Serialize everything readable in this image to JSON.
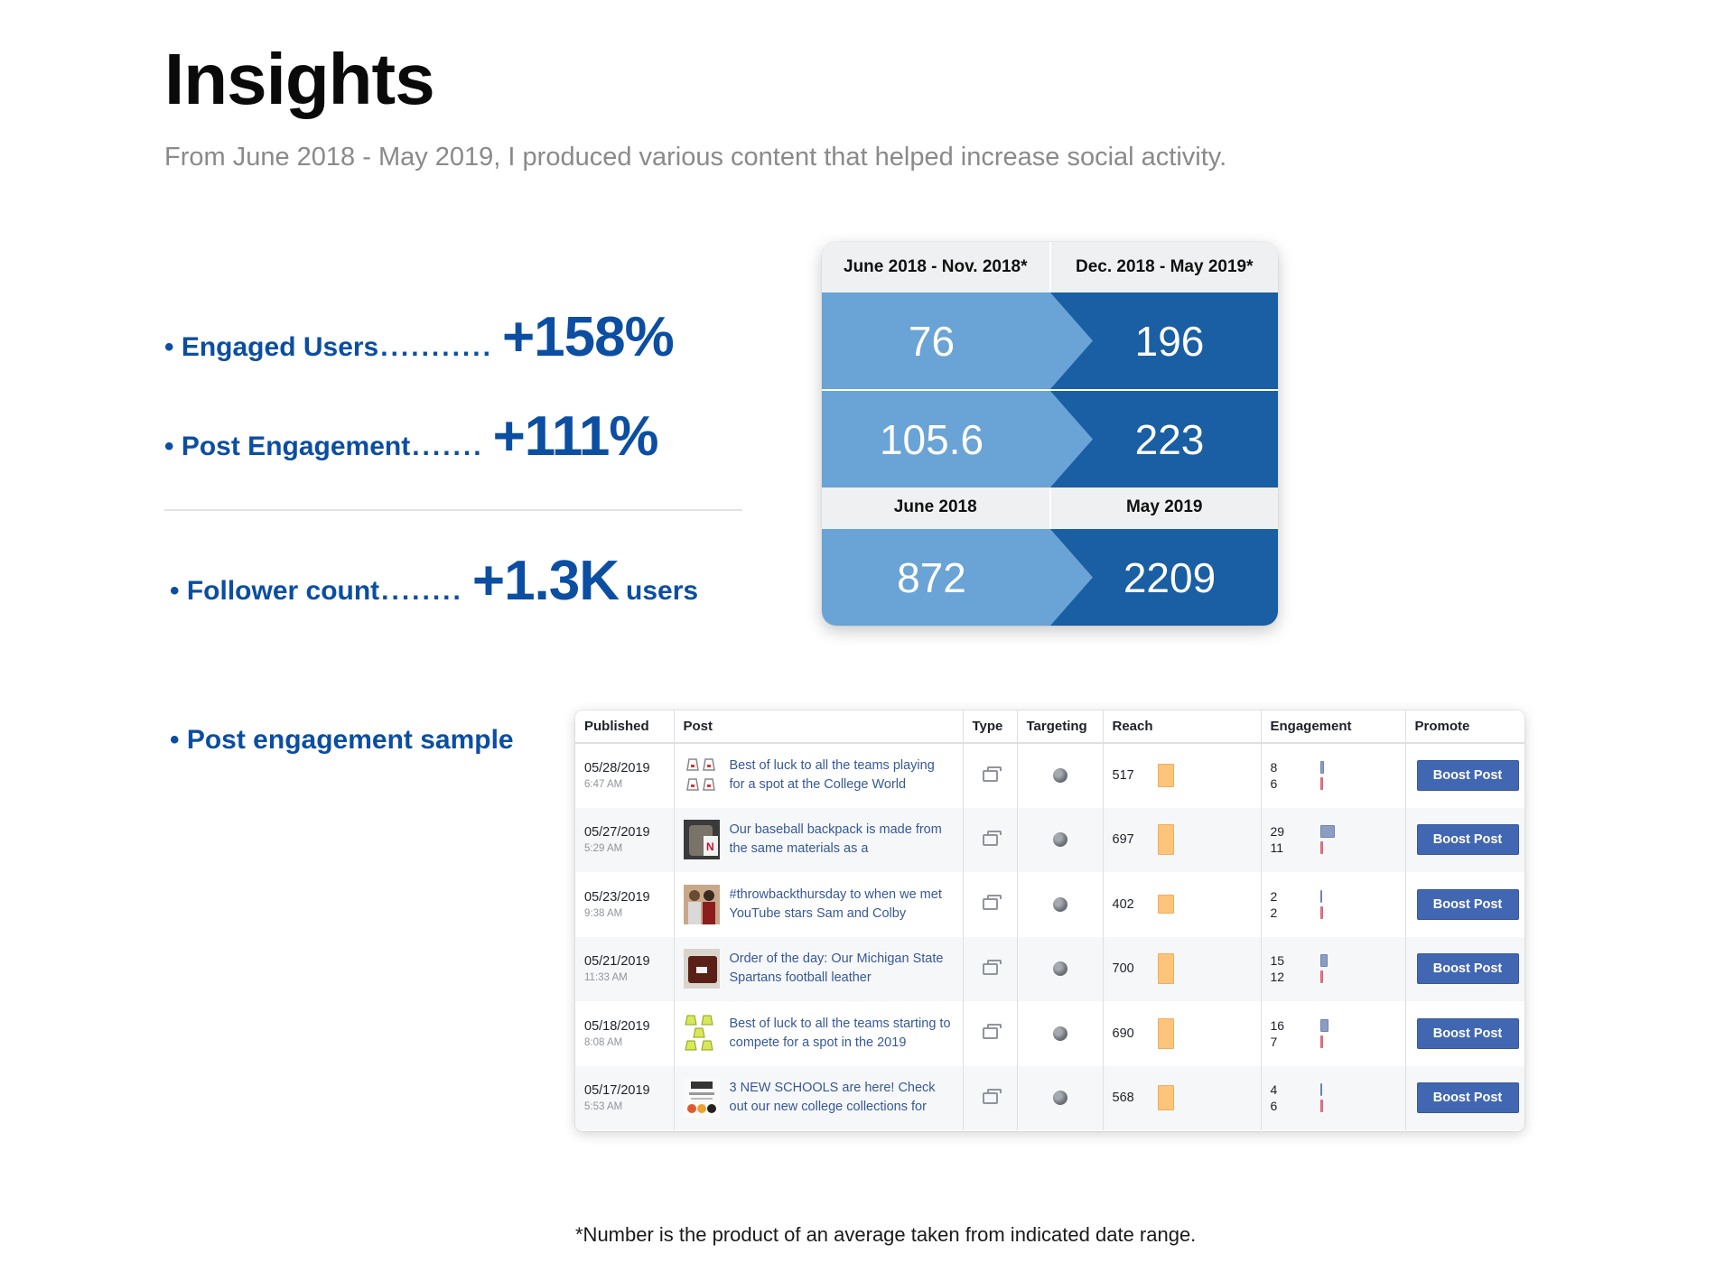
{
  "page": {
    "title": "Insights",
    "subtitle": "From June 2018 - May 2019, I produced various content that helped increase social activity."
  },
  "stats": [
    {
      "label": "• Engaged Users",
      "dots": "...........",
      "value": "+158%",
      "unit": ""
    },
    {
      "label": "• Post Engagement",
      "dots": ".......",
      "value": "+111%",
      "unit": ""
    },
    {
      "label": "• Follower count",
      "dots": "........",
      "value": "+1.3K",
      "unit": "users"
    }
  ],
  "comparison": {
    "header": [
      "June 2018 - Nov. 2018*",
      "Dec. 2018 - May 2019*"
    ],
    "subheader": [
      "June 2018",
      "May 2019"
    ],
    "rows": [
      {
        "before": "76",
        "after": "196"
      },
      {
        "before": "105.6",
        "after": "223"
      },
      {
        "before": "872",
        "after": "2209"
      }
    ],
    "colors": {
      "light": "#6aa3d5",
      "dark": "#1a5ea3",
      "header_bg": "#eef0f2"
    }
  },
  "section": {
    "post_sample_label": "• Post engagement sample"
  },
  "table": {
    "columns": [
      "Published",
      "Post",
      "Type",
      "Targeting",
      "Reach",
      "Engagement",
      "Promote"
    ],
    "boost_label": "Boost Post",
    "rows": [
      {
        "date": "05/28/2019",
        "time": "6:47 AM",
        "text": "Best of luck to all the teams playing for a spot at the College World",
        "thumb": "cap-icons",
        "reach": "517",
        "reach_level": 0.74,
        "eng1": "8",
        "eng2": "6",
        "eng1_level": 0.28,
        "eng2_level": 0.21
      },
      {
        "date": "05/27/2019",
        "time": "5:29 AM",
        "text": "Our baseball backpack is made from the same materials as a",
        "thumb": "backpack-photo",
        "reach": "697",
        "reach_level": 1.0,
        "eng1": "29",
        "eng2": "11",
        "eng1_level": 1.0,
        "eng2_level": 0.38
      },
      {
        "date": "05/23/2019",
        "time": "9:38 AM",
        "text": "#throwbackthursday to when we met YouTube stars Sam and Colby",
        "thumb": "people-photo",
        "reach": "402",
        "reach_level": 0.57,
        "eng1": "2",
        "eng2": "2",
        "eng1_level": 0.07,
        "eng2_level": 0.07
      },
      {
        "date": "05/21/2019",
        "time": "11:33 AM",
        "text": "Order of the day: Our Michigan State Spartans football leather",
        "thumb": "leather-photo",
        "reach": "700",
        "reach_level": 1.0,
        "eng1": "15",
        "eng2": "12",
        "eng1_level": 0.52,
        "eng2_level": 0.41
      },
      {
        "date": "05/18/2019",
        "time": "8:08 AM",
        "text": "Best of luck to all the teams starting to compete for a spot in the 2019",
        "thumb": "yellow-caps",
        "reach": "690",
        "reach_level": 0.99,
        "eng1": "16",
        "eng2": "7",
        "eng1_level": 0.55,
        "eng2_level": 0.24
      },
      {
        "date": "05/17/2019",
        "time": "5:53 AM",
        "text": "3 NEW SCHOOLS are here! Check out our new college collections for",
        "thumb": "schools-logos",
        "reach": "568",
        "reach_level": 0.81,
        "eng1": "4",
        "eng2": "6",
        "eng1_level": 0.14,
        "eng2_level": 0.21
      }
    ]
  },
  "footnote": "*Number is the product of an average taken from indicated date range."
}
